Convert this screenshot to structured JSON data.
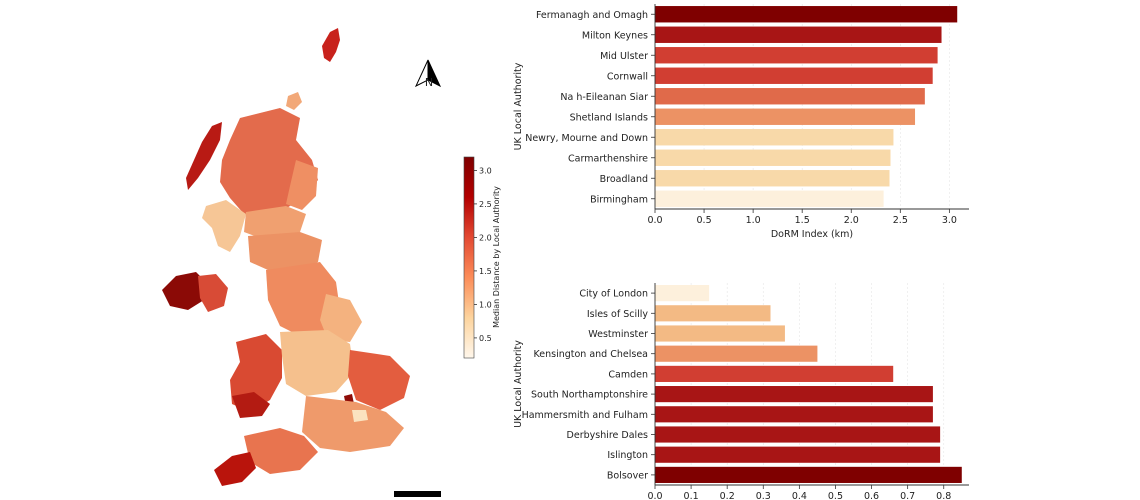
{
  "map": {
    "north_label": "N",
    "colorbar": {
      "label": "Median Distance by Local Authority",
      "ticks": [
        0.5,
        1.0,
        1.5,
        2.0,
        2.5,
        3.0
      ],
      "range": [
        0.2,
        3.2
      ]
    }
  },
  "chart_data": [
    {
      "type": "bar",
      "orientation": "horizontal",
      "categories": [
        "Fermanagh and Omagh",
        "Milton Keynes",
        "Mid Ulster",
        "Cornwall",
        "Na h-Eileanan Siar",
        "Shetland Islands",
        "Newry, Mourne and Down",
        "Carmarthenshire",
        "Broadland",
        "Birmingham"
      ],
      "values": [
        3.08,
        2.92,
        2.88,
        2.83,
        2.75,
        2.65,
        2.43,
        2.4,
        2.39,
        2.33
      ],
      "xlabel": "DoRM Index (km)",
      "ylabel": "UK Local Authority",
      "xlim": [
        0,
        3.2
      ],
      "xticks": [
        0.0,
        0.5,
        1.0,
        1.5,
        2.0,
        2.5,
        3.0
      ],
      "xtick_labels": [
        "0.0",
        "0.5",
        "1.0",
        "1.5",
        "2.0",
        "2.5",
        "3.0"
      ],
      "grid": true,
      "colormap": "OrRd"
    },
    {
      "type": "bar",
      "orientation": "horizontal",
      "categories": [
        "City of London",
        "Isles of Scilly",
        "Westminster",
        "Kensington and Chelsea",
        "Camden",
        "South Northamptonshire",
        "Hammersmith and Fulham",
        "Derbyshire Dales",
        "Islington",
        "Bolsover"
      ],
      "values": [
        0.15,
        0.32,
        0.36,
        0.45,
        0.66,
        0.77,
        0.77,
        0.79,
        0.79,
        0.85
      ],
      "xlabel": "",
      "ylabel": "UK Local Authority",
      "xlim": [
        0,
        0.87
      ],
      "xticks": [
        0.0,
        0.1,
        0.2,
        0.3,
        0.4,
        0.5,
        0.6,
        0.7,
        0.8
      ],
      "xtick_labels": [
        "0.0",
        "0.1",
        "0.2",
        "0.3",
        "0.4",
        "0.5",
        "0.6",
        "0.7",
        "0.8"
      ],
      "grid": true,
      "colormap": "OrRd"
    }
  ],
  "colors": {
    "ramp": [
      "#fdf0dc",
      "#f8d9a9",
      "#f3ba84",
      "#ec9264",
      "#e06a4a",
      "#d13e32",
      "#a81515",
      "#7f0000"
    ]
  }
}
